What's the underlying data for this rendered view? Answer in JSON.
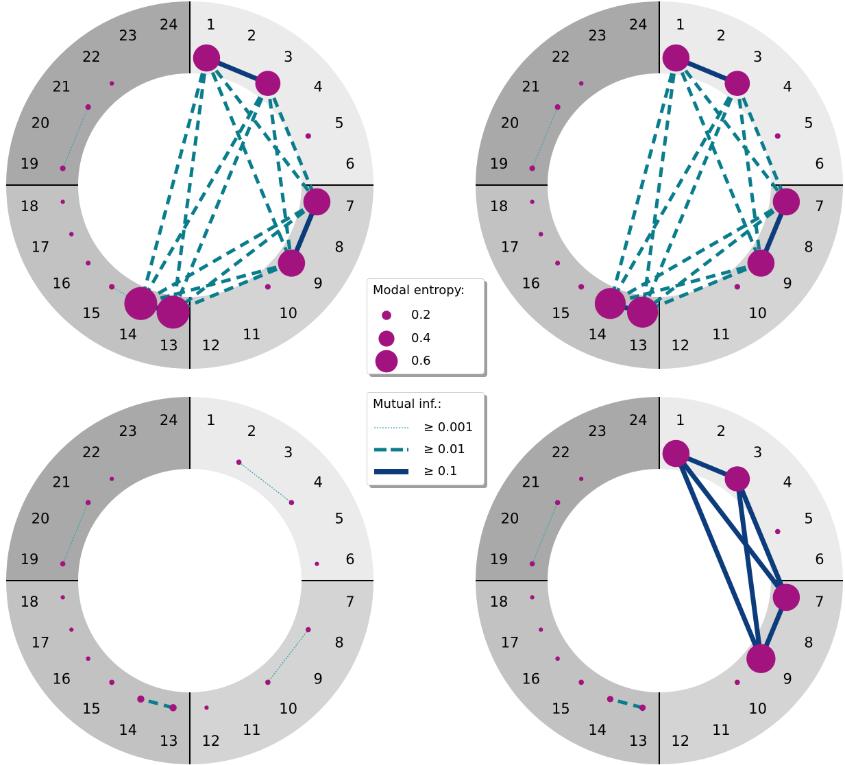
{
  "colors": {
    "quadrant_q1": "#ebebeb",
    "quadrant_q2": "#d4d4d4",
    "quadrant_q3": "#c2c2c2",
    "quadrant_q4": "#a9a9a9",
    "node": "#a2137f",
    "strong_edge": "#0c3c7c",
    "medium_edge": "#0a7d8c",
    "weak_edge": "#3aa2b0",
    "divider": "#000000"
  },
  "hour_labels": [
    "1",
    "2",
    "3",
    "4",
    "5",
    "6",
    "7",
    "8",
    "9",
    "10",
    "11",
    "12",
    "13",
    "14",
    "15",
    "16",
    "17",
    "18",
    "19",
    "20",
    "21",
    "22",
    "23",
    "24"
  ],
  "panels": [
    {
      "id": "top-left",
      "nodes": [
        {
          "hour": 1,
          "entropy": 0.6
        },
        {
          "hour": 3,
          "entropy": 0.55
        },
        {
          "hour": 5,
          "entropy": 0.04
        },
        {
          "hour": 7,
          "entropy": 0.6
        },
        {
          "hour": 9,
          "entropy": 0.6
        },
        {
          "hour": 10,
          "entropy": 0.04
        },
        {
          "hour": 13,
          "entropy": 0.75
        },
        {
          "hour": 14,
          "entropy": 0.75
        },
        {
          "hour": 15,
          "entropy": 0.04
        },
        {
          "hour": 16,
          "entropy": 0.02
        },
        {
          "hour": 17,
          "entropy": 0.01
        },
        {
          "hour": 18,
          "entropy": 0.005
        },
        {
          "hour": 19,
          "entropy": 0.04
        },
        {
          "hour": 21,
          "entropy": 0.04
        },
        {
          "hour": 22,
          "entropy": 0.01
        }
      ],
      "edges": [
        {
          "a": 1,
          "b": 3,
          "level": "strong"
        },
        {
          "a": 7,
          "b": 9,
          "level": "strong"
        },
        {
          "a": 13,
          "b": 14,
          "level": "strong"
        },
        {
          "a": 1,
          "b": 7,
          "level": "medium"
        },
        {
          "a": 1,
          "b": 9,
          "level": "medium"
        },
        {
          "a": 1,
          "b": 13,
          "level": "medium"
        },
        {
          "a": 1,
          "b": 14,
          "level": "medium"
        },
        {
          "a": 3,
          "b": 7,
          "level": "medium"
        },
        {
          "a": 3,
          "b": 9,
          "level": "medium"
        },
        {
          "a": 3,
          "b": 13,
          "level": "medium"
        },
        {
          "a": 3,
          "b": 14,
          "level": "medium"
        },
        {
          "a": 7,
          "b": 13,
          "level": "medium"
        },
        {
          "a": 7,
          "b": 14,
          "level": "medium"
        },
        {
          "a": 9,
          "b": 13,
          "level": "medium"
        },
        {
          "a": 9,
          "b": 14,
          "level": "medium"
        },
        {
          "a": 19,
          "b": 21,
          "level": "weak"
        },
        {
          "a": 14,
          "b": 15,
          "level": "weak"
        }
      ]
    },
    {
      "id": "top-right",
      "nodes": [
        {
          "hour": 1,
          "entropy": 0.6
        },
        {
          "hour": 3,
          "entropy": 0.55
        },
        {
          "hour": 5,
          "entropy": 0.04
        },
        {
          "hour": 7,
          "entropy": 0.6
        },
        {
          "hour": 9,
          "entropy": 0.6
        },
        {
          "hour": 10,
          "entropy": 0.04
        },
        {
          "hour": 13,
          "entropy": 0.7
        },
        {
          "hour": 14,
          "entropy": 0.7
        },
        {
          "hour": 15,
          "entropy": 0.04
        },
        {
          "hour": 16,
          "entropy": 0.02
        },
        {
          "hour": 17,
          "entropy": 0.01
        },
        {
          "hour": 18,
          "entropy": 0.005
        },
        {
          "hour": 19,
          "entropy": 0.04
        },
        {
          "hour": 21,
          "entropy": 0.04
        },
        {
          "hour": 22,
          "entropy": 0.01
        }
      ],
      "edges": [
        {
          "a": 1,
          "b": 3,
          "level": "strong"
        },
        {
          "a": 7,
          "b": 9,
          "level": "strong"
        },
        {
          "a": 13,
          "b": 14,
          "level": "strong"
        },
        {
          "a": 1,
          "b": 7,
          "level": "medium"
        },
        {
          "a": 1,
          "b": 9,
          "level": "medium"
        },
        {
          "a": 1,
          "b": 13,
          "level": "medium"
        },
        {
          "a": 1,
          "b": 14,
          "level": "medium"
        },
        {
          "a": 3,
          "b": 7,
          "level": "medium"
        },
        {
          "a": 3,
          "b": 9,
          "level": "medium"
        },
        {
          "a": 3,
          "b": 13,
          "level": "medium"
        },
        {
          "a": 3,
          "b": 14,
          "level": "medium"
        },
        {
          "a": 7,
          "b": 13,
          "level": "medium"
        },
        {
          "a": 7,
          "b": 14,
          "level": "medium"
        },
        {
          "a": 9,
          "b": 13,
          "level": "medium"
        },
        {
          "a": 9,
          "b": 14,
          "level": "medium"
        },
        {
          "a": 19,
          "b": 21,
          "level": "weak"
        }
      ]
    },
    {
      "id": "bottom-left",
      "nodes": [
        {
          "hour": 2,
          "entropy": 0.03
        },
        {
          "hour": 4,
          "entropy": 0.03
        },
        {
          "hour": 6,
          "entropy": 0.005
        },
        {
          "hour": 8,
          "entropy": 0.03
        },
        {
          "hour": 10,
          "entropy": 0.03
        },
        {
          "hour": 12,
          "entropy": 0.005
        },
        {
          "hour": 13,
          "entropy": 0.08
        },
        {
          "hour": 14,
          "entropy": 0.08
        },
        {
          "hour": 15,
          "entropy": 0.03
        },
        {
          "hour": 16,
          "entropy": 0.01
        },
        {
          "hour": 17,
          "entropy": 0.005
        },
        {
          "hour": 18,
          "entropy": 0.005
        },
        {
          "hour": 19,
          "entropy": 0.03
        },
        {
          "hour": 21,
          "entropy": 0.03
        },
        {
          "hour": 22,
          "entropy": 0.005
        }
      ],
      "edges": [
        {
          "a": 2,
          "b": 4,
          "level": "weak"
        },
        {
          "a": 8,
          "b": 10,
          "level": "weak"
        },
        {
          "a": 19,
          "b": 21,
          "level": "weak"
        },
        {
          "a": 13,
          "b": 14,
          "level": "medium"
        }
      ]
    },
    {
      "id": "bottom-right",
      "nodes": [
        {
          "hour": 1,
          "entropy": 0.6
        },
        {
          "hour": 3,
          "entropy": 0.55
        },
        {
          "hour": 5,
          "entropy": 0.03
        },
        {
          "hour": 7,
          "entropy": 0.6
        },
        {
          "hour": 9,
          "entropy": 0.65
        },
        {
          "hour": 10,
          "entropy": 0.03
        },
        {
          "hour": 13,
          "entropy": 0.06
        },
        {
          "hour": 14,
          "entropy": 0.06
        },
        {
          "hour": 15,
          "entropy": 0.03
        },
        {
          "hour": 16,
          "entropy": 0.01
        },
        {
          "hour": 17,
          "entropy": 0.005
        },
        {
          "hour": 18,
          "entropy": 0.005
        },
        {
          "hour": 19,
          "entropy": 0.03
        },
        {
          "hour": 21,
          "entropy": 0.03
        },
        {
          "hour": 22,
          "entropy": 0.005
        }
      ],
      "edges": [
        {
          "a": 1,
          "b": 3,
          "level": "strong"
        },
        {
          "a": 1,
          "b": 7,
          "level": "strong"
        },
        {
          "a": 1,
          "b": 9,
          "level": "strong"
        },
        {
          "a": 3,
          "b": 7,
          "level": "strong"
        },
        {
          "a": 3,
          "b": 9,
          "level": "strong"
        },
        {
          "a": 7,
          "b": 9,
          "level": "strong"
        },
        {
          "a": 19,
          "b": 21,
          "level": "weak"
        },
        {
          "a": 13,
          "b": 14,
          "level": "medium"
        }
      ]
    }
  ],
  "legend_entropy": {
    "title": "Modal entropy:",
    "items": [
      {
        "label": "0.2",
        "value": 0.2
      },
      {
        "label": "0.4",
        "value": 0.4
      },
      {
        "label": "0.6",
        "value": 0.6
      }
    ]
  },
  "legend_mi": {
    "title": "Mutual inf.:",
    "items": [
      {
        "label": "≥ 0.001",
        "level": "weak"
      },
      {
        "label": "≥ 0.01",
        "level": "medium"
      },
      {
        "label": "≥ 0.1",
        "level": "strong"
      }
    ]
  }
}
